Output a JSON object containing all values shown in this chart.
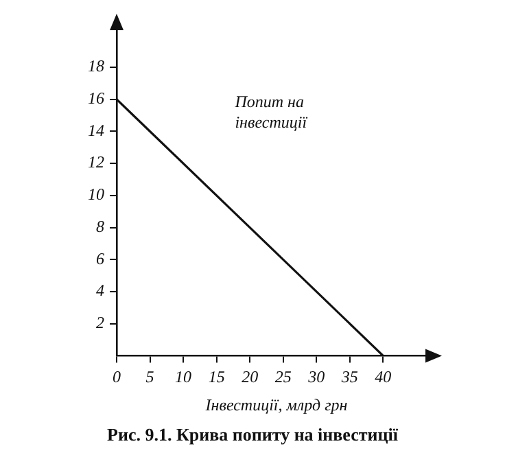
{
  "chart_data": {
    "type": "line",
    "x": [
      0,
      40
    ],
    "values": [
      16,
      0
    ],
    "color": "#111111",
    "xlim": [
      0,
      48
    ],
    "ylim": [
      0,
      21
    ],
    "xticks": [
      0,
      5,
      10,
      15,
      20,
      25,
      30,
      35,
      40
    ],
    "yticks": [
      2,
      4,
      6,
      8,
      10,
      12,
      14,
      16,
      18
    ],
    "xlabel": "Інвестиції, млрд грн",
    "annotations": [
      "Попит на інвестиції",
      "Рис. 9.1. Крива попиту на інвестиції"
    ],
    "grid": false,
    "legend": false,
    "marker": "none",
    "line_style": "solid"
  }
}
